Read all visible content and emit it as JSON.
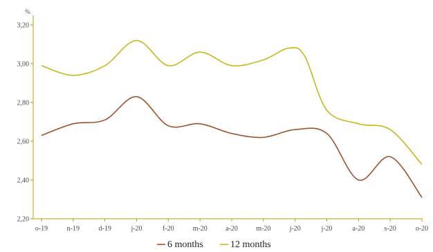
{
  "chart_data": {
    "type": "line",
    "ylabel": "%",
    "ylim": [
      2.2,
      3.25
    ],
    "y_ticks": [
      "2,20",
      "2,40",
      "2,60",
      "2,80",
      "3,00",
      "3,20"
    ],
    "x_tick_labels": [
      "o-19",
      "n-19",
      "d-19",
      "j-20",
      "f-20",
      "m-20",
      "a-20",
      "m-20",
      "j-20",
      "j-20",
      "a-20",
      "s-20",
      "o-20"
    ],
    "grid": false,
    "legend_position": "bottom",
    "series": [
      {
        "name": "6 months",
        "color": "#a0522d",
        "values": [
          [
            0,
            2.63
          ],
          [
            1,
            2.69
          ],
          [
            2,
            2.71
          ],
          [
            3,
            2.83
          ],
          [
            4,
            2.68
          ],
          [
            5,
            2.69
          ],
          [
            6,
            2.64
          ],
          [
            7,
            2.62
          ],
          [
            8,
            2.66
          ],
          [
            9,
            2.64
          ],
          [
            10,
            2.4
          ],
          [
            11,
            2.52
          ],
          [
            12,
            2.31
          ]
        ]
      },
      {
        "name": "12 months",
        "color": "#c8b81e",
        "values": [
          [
            0,
            2.99
          ],
          [
            1,
            2.94
          ],
          [
            2,
            2.99
          ],
          [
            3,
            3.12
          ],
          [
            4,
            2.99
          ],
          [
            5,
            3.06
          ],
          [
            6,
            2.99
          ],
          [
            7,
            3.02
          ],
          [
            7.8,
            3.08
          ],
          [
            8.3,
            3.04
          ],
          [
            9,
            2.76
          ],
          [
            10,
            2.69
          ],
          [
            11,
            2.66
          ],
          [
            12,
            2.48
          ]
        ]
      }
    ]
  }
}
